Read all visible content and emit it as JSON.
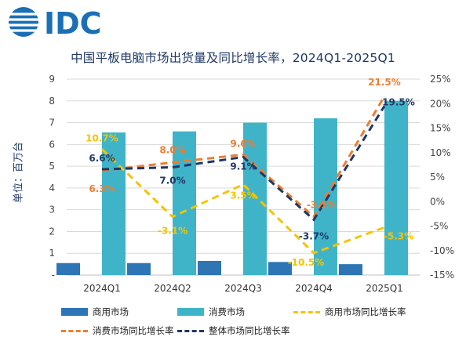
{
  "logo_text": "IDC",
  "chart_data": {
    "type": "bar",
    "title": "中国平板电脑市场出货量及同比增长率，2024Q1-2025Q1",
    "ylabel": "单位：百万台",
    "categories": [
      "2024Q1",
      "2024Q2",
      "2024Q3",
      "2024Q4",
      "2025Q1"
    ],
    "left_axis": {
      "ylim": [
        0,
        9
      ],
      "ticks": [
        "-",
        "1",
        "2",
        "3",
        "4",
        "5",
        "6",
        "7",
        "8",
        "9"
      ]
    },
    "right_axis": {
      "ylim": [
        -15,
        25
      ],
      "ticks": [
        "-15%",
        "-10%",
        "-5%",
        "0%",
        "5%",
        "10%",
        "15%",
        "20%",
        "25%"
      ]
    },
    "grid": true,
    "legend_position": "bottom",
    "series": [
      {
        "name": "商用市场",
        "kind": "bar",
        "axis": "left",
        "color": "#2e75b6",
        "values": [
          0.55,
          0.55,
          0.65,
          0.6,
          0.5
        ]
      },
      {
        "name": "消费市场",
        "kind": "bar",
        "axis": "left",
        "color": "#3fb4c9",
        "values": [
          6.55,
          6.6,
          7.0,
          7.2,
          8.0
        ]
      },
      {
        "name": "商用市场同比增长率",
        "kind": "line",
        "axis": "right",
        "color": "#f5c400",
        "values": [
          10.7,
          -3.1,
          3.5,
          -10.5,
          -5.3
        ],
        "labels": [
          "10.7%",
          "-3.1%",
          "3.5%",
          "-10.5%",
          "-5.3%"
        ]
      },
      {
        "name": "消费市场同比增长率",
        "kind": "line",
        "axis": "right",
        "color": "#ed7d31",
        "values": [
          6.3,
          8.0,
          9.6,
          -3.1,
          21.5
        ],
        "labels": [
          "6.3%",
          "8.0%",
          "9.6%",
          "-3.1%",
          "21.5%"
        ]
      },
      {
        "name": "整体市场同比增长率",
        "kind": "line",
        "axis": "right",
        "color": "#1f3864",
        "values": [
          6.6,
          7.0,
          9.1,
          -3.7,
          19.5
        ],
        "labels": [
          "6.6%",
          "7.0%",
          "9.1%",
          "-3.7%",
          "19.5%"
        ]
      }
    ]
  }
}
